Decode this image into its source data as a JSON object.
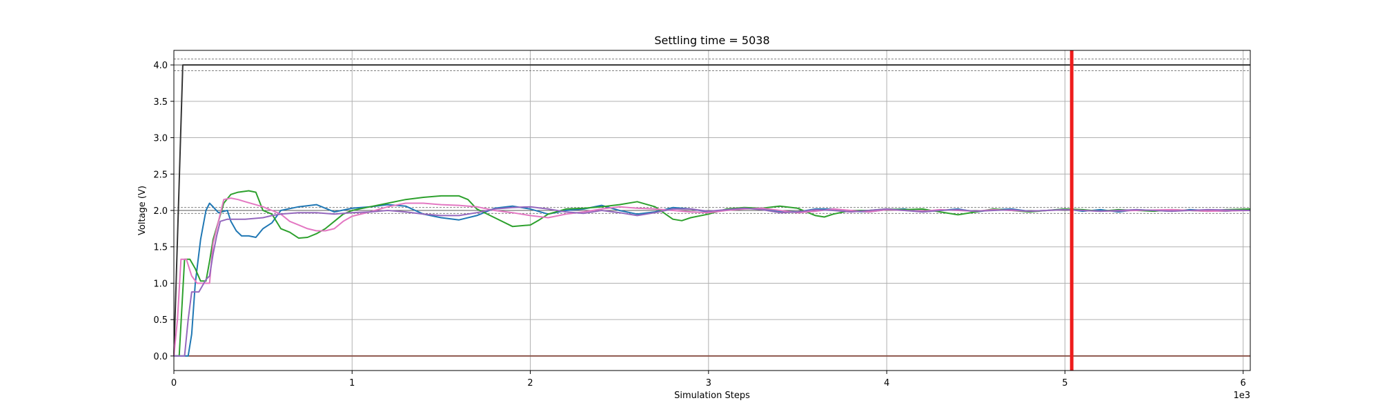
{
  "chart_data": {
    "type": "line",
    "title": "Settling time = 5038",
    "xlabel": "Simulation Steps",
    "ylabel": "Voltage (V)",
    "x_offset_text": "1e3",
    "xlim": [
      0,
      6.04
    ],
    "ylim": [
      -0.2,
      4.2
    ],
    "xticks": [
      0,
      1,
      2,
      3,
      4,
      5,
      6
    ],
    "xtick_labels": [
      "0",
      "1",
      "2",
      "3",
      "4",
      "5",
      "6"
    ],
    "yticks": [
      0.0,
      0.5,
      1.0,
      1.5,
      2.0,
      2.5,
      3.0,
      3.5,
      4.0
    ],
    "ytick_labels": [
      "0.0",
      "0.5",
      "1.0",
      "1.5",
      "2.0",
      "2.5",
      "3.0",
      "3.5",
      "4.0"
    ],
    "grid": true,
    "settling_time": 5.038,
    "settling_line_color": "#ee1c1c",
    "tolerance_bands": [
      {
        "center": 4.0,
        "lower": 3.92,
        "upper": 4.08,
        "color": "#555555"
      },
      {
        "center": 2.0,
        "lower": 1.96,
        "upper": 2.04,
        "color": "#555555"
      }
    ],
    "series": [
      {
        "color": "#333333",
        "points": [
          [
            0,
            0
          ],
          [
            0.05,
            4.0
          ],
          [
            6.04,
            4.0
          ]
        ]
      },
      {
        "color": "#8c564b",
        "points": [
          [
            0,
            0
          ],
          [
            6.04,
            0
          ]
        ]
      },
      {
        "color": "#1f77b4",
        "points": [
          [
            0,
            0
          ],
          [
            0.08,
            0
          ],
          [
            0.1,
            0.3
          ],
          [
            0.12,
            1.0
          ],
          [
            0.15,
            1.6
          ],
          [
            0.18,
            2.0
          ],
          [
            0.2,
            2.1
          ],
          [
            0.22,
            2.05
          ],
          [
            0.25,
            1.97
          ],
          [
            0.3,
            2.0
          ],
          [
            0.32,
            1.85
          ],
          [
            0.35,
            1.72
          ],
          [
            0.38,
            1.65
          ],
          [
            0.42,
            1.65
          ],
          [
            0.46,
            1.63
          ],
          [
            0.5,
            1.75
          ],
          [
            0.55,
            1.83
          ],
          [
            0.6,
            2.0
          ],
          [
            0.7,
            2.05
          ],
          [
            0.8,
            2.08
          ],
          [
            0.85,
            2.03
          ],
          [
            0.9,
            1.98
          ],
          [
            1.0,
            2.03
          ],
          [
            1.1,
            2.05
          ],
          [
            1.2,
            2.08
          ],
          [
            1.3,
            2.06
          ],
          [
            1.4,
            1.95
          ],
          [
            1.5,
            1.9
          ],
          [
            1.6,
            1.87
          ],
          [
            1.7,
            1.93
          ],
          [
            1.8,
            2.03
          ],
          [
            1.9,
            2.06
          ],
          [
            2.0,
            2.02
          ],
          [
            2.1,
            1.95
          ],
          [
            2.2,
            2.0
          ],
          [
            2.3,
            2.02
          ],
          [
            2.4,
            2.07
          ],
          [
            2.5,
            2.0
          ],
          [
            2.6,
            1.95
          ],
          [
            2.7,
            1.98
          ],
          [
            2.8,
            2.04
          ],
          [
            2.9,
            2.02
          ],
          [
            3.0,
            1.98
          ],
          [
            3.1,
            2.01
          ],
          [
            3.2,
            2.03
          ],
          [
            3.3,
            2.02
          ],
          [
            3.4,
            1.99
          ],
          [
            3.5,
            1.98
          ],
          [
            3.6,
            2.02
          ],
          [
            3.7,
            2.02
          ],
          [
            3.8,
            1.99
          ],
          [
            3.9,
            1.98
          ],
          [
            4.0,
            2.01
          ],
          [
            4.1,
            2.02
          ],
          [
            4.2,
            1.98
          ],
          [
            4.3,
            2.0
          ],
          [
            4.4,
            2.02
          ],
          [
            4.5,
            1.98
          ],
          [
            4.6,
            2.01
          ],
          [
            4.7,
            2.02
          ],
          [
            4.8,
            1.99
          ],
          [
            4.9,
            2.0
          ],
          [
            5.0,
            2.02
          ],
          [
            5.1,
            1.99
          ],
          [
            5.2,
            2.01
          ],
          [
            5.3,
            1.98
          ],
          [
            5.4,
            2.01
          ],
          [
            5.5,
            2.0
          ],
          [
            5.6,
            1.99
          ],
          [
            5.7,
            2.01
          ],
          [
            5.8,
            2.0
          ],
          [
            5.9,
            1.99
          ],
          [
            6.04,
            2.01
          ]
        ]
      },
      {
        "color": "#2ca02c",
        "points": [
          [
            0,
            0
          ],
          [
            0.03,
            0
          ],
          [
            0.06,
            1.33
          ],
          [
            0.09,
            1.33
          ],
          [
            0.12,
            1.2
          ],
          [
            0.15,
            1.03
          ],
          [
            0.18,
            1.03
          ],
          [
            0.2,
            1.3
          ],
          [
            0.22,
            1.6
          ],
          [
            0.25,
            1.85
          ],
          [
            0.28,
            2.1
          ],
          [
            0.32,
            2.22
          ],
          [
            0.36,
            2.25
          ],
          [
            0.42,
            2.27
          ],
          [
            0.46,
            2.25
          ],
          [
            0.5,
            2.0
          ],
          [
            0.55,
            1.95
          ],
          [
            0.6,
            1.75
          ],
          [
            0.65,
            1.7
          ],
          [
            0.7,
            1.62
          ],
          [
            0.75,
            1.63
          ],
          [
            0.8,
            1.68
          ],
          [
            0.85,
            1.75
          ],
          [
            0.9,
            1.85
          ],
          [
            0.95,
            1.95
          ],
          [
            1.0,
            2.0
          ],
          [
            1.1,
            2.05
          ],
          [
            1.2,
            2.1
          ],
          [
            1.3,
            2.15
          ],
          [
            1.4,
            2.18
          ],
          [
            1.5,
            2.2
          ],
          [
            1.6,
            2.2
          ],
          [
            1.65,
            2.15
          ],
          [
            1.7,
            2.02
          ],
          [
            1.8,
            1.9
          ],
          [
            1.9,
            1.78
          ],
          [
            2.0,
            1.8
          ],
          [
            2.05,
            1.87
          ],
          [
            2.1,
            1.95
          ],
          [
            2.2,
            2.02
          ],
          [
            2.3,
            2.03
          ],
          [
            2.4,
            2.05
          ],
          [
            2.5,
            2.08
          ],
          [
            2.6,
            2.12
          ],
          [
            2.7,
            2.05
          ],
          [
            2.8,
            1.88
          ],
          [
            2.85,
            1.86
          ],
          [
            2.9,
            1.9
          ],
          [
            3.0,
            1.95
          ],
          [
            3.1,
            2.02
          ],
          [
            3.2,
            2.04
          ],
          [
            3.3,
            2.03
          ],
          [
            3.4,
            2.06
          ],
          [
            3.5,
            2.03
          ],
          [
            3.6,
            1.93
          ],
          [
            3.65,
            1.91
          ],
          [
            3.7,
            1.95
          ],
          [
            3.8,
            2.0
          ],
          [
            3.9,
            2.0
          ],
          [
            4.0,
            2.02
          ],
          [
            4.1,
            2.01
          ],
          [
            4.2,
            2.02
          ],
          [
            4.3,
            1.98
          ],
          [
            4.4,
            1.94
          ],
          [
            4.5,
            1.98
          ],
          [
            4.6,
            2.02
          ],
          [
            4.7,
            2.0
          ],
          [
            4.8,
            1.98
          ],
          [
            4.9,
            2.0
          ],
          [
            5.0,
            2.02
          ],
          [
            5.1,
            2.01
          ],
          [
            5.2,
            1.99
          ],
          [
            5.3,
            2.01
          ],
          [
            5.4,
            2.0
          ],
          [
            5.5,
            1.99
          ],
          [
            5.6,
            2.01
          ],
          [
            5.7,
            2.0
          ],
          [
            5.8,
            1.99
          ],
          [
            5.9,
            2.01
          ],
          [
            6.04,
            2.02
          ]
        ]
      },
      {
        "color": "#e377c2",
        "points": [
          [
            0,
            0
          ],
          [
            0.02,
            0.5
          ],
          [
            0.04,
            1.33
          ],
          [
            0.07,
            1.33
          ],
          [
            0.1,
            1.1
          ],
          [
            0.13,
            1.0
          ],
          [
            0.16,
            1.0
          ],
          [
            0.2,
            1.0
          ],
          [
            0.22,
            1.55
          ],
          [
            0.25,
            1.85
          ],
          [
            0.28,
            2.15
          ],
          [
            0.32,
            2.17
          ],
          [
            0.36,
            2.15
          ],
          [
            0.4,
            2.12
          ],
          [
            0.5,
            2.05
          ],
          [
            0.55,
            2.0
          ],
          [
            0.6,
            1.95
          ],
          [
            0.65,
            1.85
          ],
          [
            0.7,
            1.8
          ],
          [
            0.75,
            1.75
          ],
          [
            0.8,
            1.72
          ],
          [
            0.85,
            1.72
          ],
          [
            0.9,
            1.75
          ],
          [
            0.95,
            1.85
          ],
          [
            1.0,
            1.92
          ],
          [
            1.1,
            1.98
          ],
          [
            1.2,
            2.05
          ],
          [
            1.3,
            2.1
          ],
          [
            1.4,
            2.1
          ],
          [
            1.5,
            2.08
          ],
          [
            1.6,
            2.07
          ],
          [
            1.7,
            2.05
          ],
          [
            1.8,
            2.0
          ],
          [
            1.9,
            1.97
          ],
          [
            2.0,
            1.93
          ],
          [
            2.1,
            1.9
          ],
          [
            2.2,
            1.95
          ],
          [
            2.3,
            1.98
          ],
          [
            2.4,
            2.02
          ],
          [
            2.5,
            2.05
          ],
          [
            2.6,
            2.03
          ],
          [
            2.7,
            2.02
          ],
          [
            2.8,
            2.0
          ],
          [
            2.9,
            1.98
          ],
          [
            3.0,
            1.97
          ],
          [
            3.1,
            2.0
          ],
          [
            3.2,
            2.02
          ],
          [
            3.3,
            2.03
          ],
          [
            3.4,
            2.0
          ],
          [
            3.5,
            1.97
          ],
          [
            3.6,
            1.99
          ],
          [
            3.7,
            2.02
          ],
          [
            3.8,
            2.0
          ],
          [
            3.9,
            1.98
          ],
          [
            4.0,
            2.01
          ],
          [
            4.1,
            2.0
          ],
          [
            4.2,
            1.99
          ],
          [
            4.3,
            2.01
          ],
          [
            4.4,
            2.0
          ],
          [
            4.5,
            1.99
          ],
          [
            4.6,
            2.01
          ],
          [
            4.7,
            2.0
          ],
          [
            4.8,
            1.99
          ],
          [
            4.9,
            2.0
          ],
          [
            5.0,
            2.01
          ],
          [
            5.2,
            1.99
          ],
          [
            5.4,
            2.0
          ],
          [
            5.6,
            2.01
          ],
          [
            5.8,
            1.99
          ],
          [
            6.04,
            2.0
          ]
        ]
      },
      {
        "color": "#9467bd",
        "points": [
          [
            0,
            0
          ],
          [
            0.06,
            0
          ],
          [
            0.08,
            0.5
          ],
          [
            0.1,
            0.88
          ],
          [
            0.14,
            0.88
          ],
          [
            0.18,
            1.05
          ],
          [
            0.2,
            1.1
          ],
          [
            0.22,
            1.4
          ],
          [
            0.24,
            1.65
          ],
          [
            0.26,
            1.85
          ],
          [
            0.3,
            1.88
          ],
          [
            0.4,
            1.88
          ],
          [
            0.5,
            1.9
          ],
          [
            0.55,
            1.93
          ],
          [
            0.6,
            1.95
          ],
          [
            0.7,
            1.97
          ],
          [
            0.8,
            1.97
          ],
          [
            0.9,
            1.95
          ],
          [
            1.0,
            1.97
          ],
          [
            1.1,
            1.98
          ],
          [
            1.2,
            2.0
          ],
          [
            1.3,
            1.98
          ],
          [
            1.4,
            1.95
          ],
          [
            1.5,
            1.93
          ],
          [
            1.6,
            1.93
          ],
          [
            1.7,
            1.97
          ],
          [
            1.8,
            2.02
          ],
          [
            1.9,
            2.04
          ],
          [
            2.0,
            2.05
          ],
          [
            2.1,
            2.02
          ],
          [
            2.2,
            1.98
          ],
          [
            2.3,
            1.96
          ],
          [
            2.4,
            2.0
          ],
          [
            2.5,
            1.97
          ],
          [
            2.6,
            1.93
          ],
          [
            2.7,
            1.97
          ],
          [
            2.8,
            2.02
          ],
          [
            2.9,
            2.02
          ],
          [
            3.0,
            1.99
          ],
          [
            3.1,
            2.01
          ],
          [
            3.2,
            2.03
          ],
          [
            3.3,
            2.01
          ],
          [
            3.4,
            1.97
          ],
          [
            3.5,
            1.98
          ],
          [
            3.6,
            2.01
          ],
          [
            3.7,
            2.0
          ],
          [
            3.8,
            1.98
          ],
          [
            3.9,
            2.0
          ],
          [
            4.0,
            2.02
          ],
          [
            4.1,
            2.0
          ],
          [
            4.2,
            1.98
          ],
          [
            4.3,
            2.0
          ],
          [
            4.4,
            2.01
          ],
          [
            4.5,
            1.99
          ],
          [
            4.6,
            2.0
          ],
          [
            4.7,
            2.01
          ],
          [
            4.8,
            1.99
          ],
          [
            4.9,
            2.0
          ],
          [
            5.0,
            2.01
          ],
          [
            5.2,
            1.99
          ],
          [
            5.4,
            2.01
          ],
          [
            5.6,
            1.99
          ],
          [
            5.8,
            2.01
          ],
          [
            6.04,
            2.0
          ]
        ]
      }
    ]
  }
}
